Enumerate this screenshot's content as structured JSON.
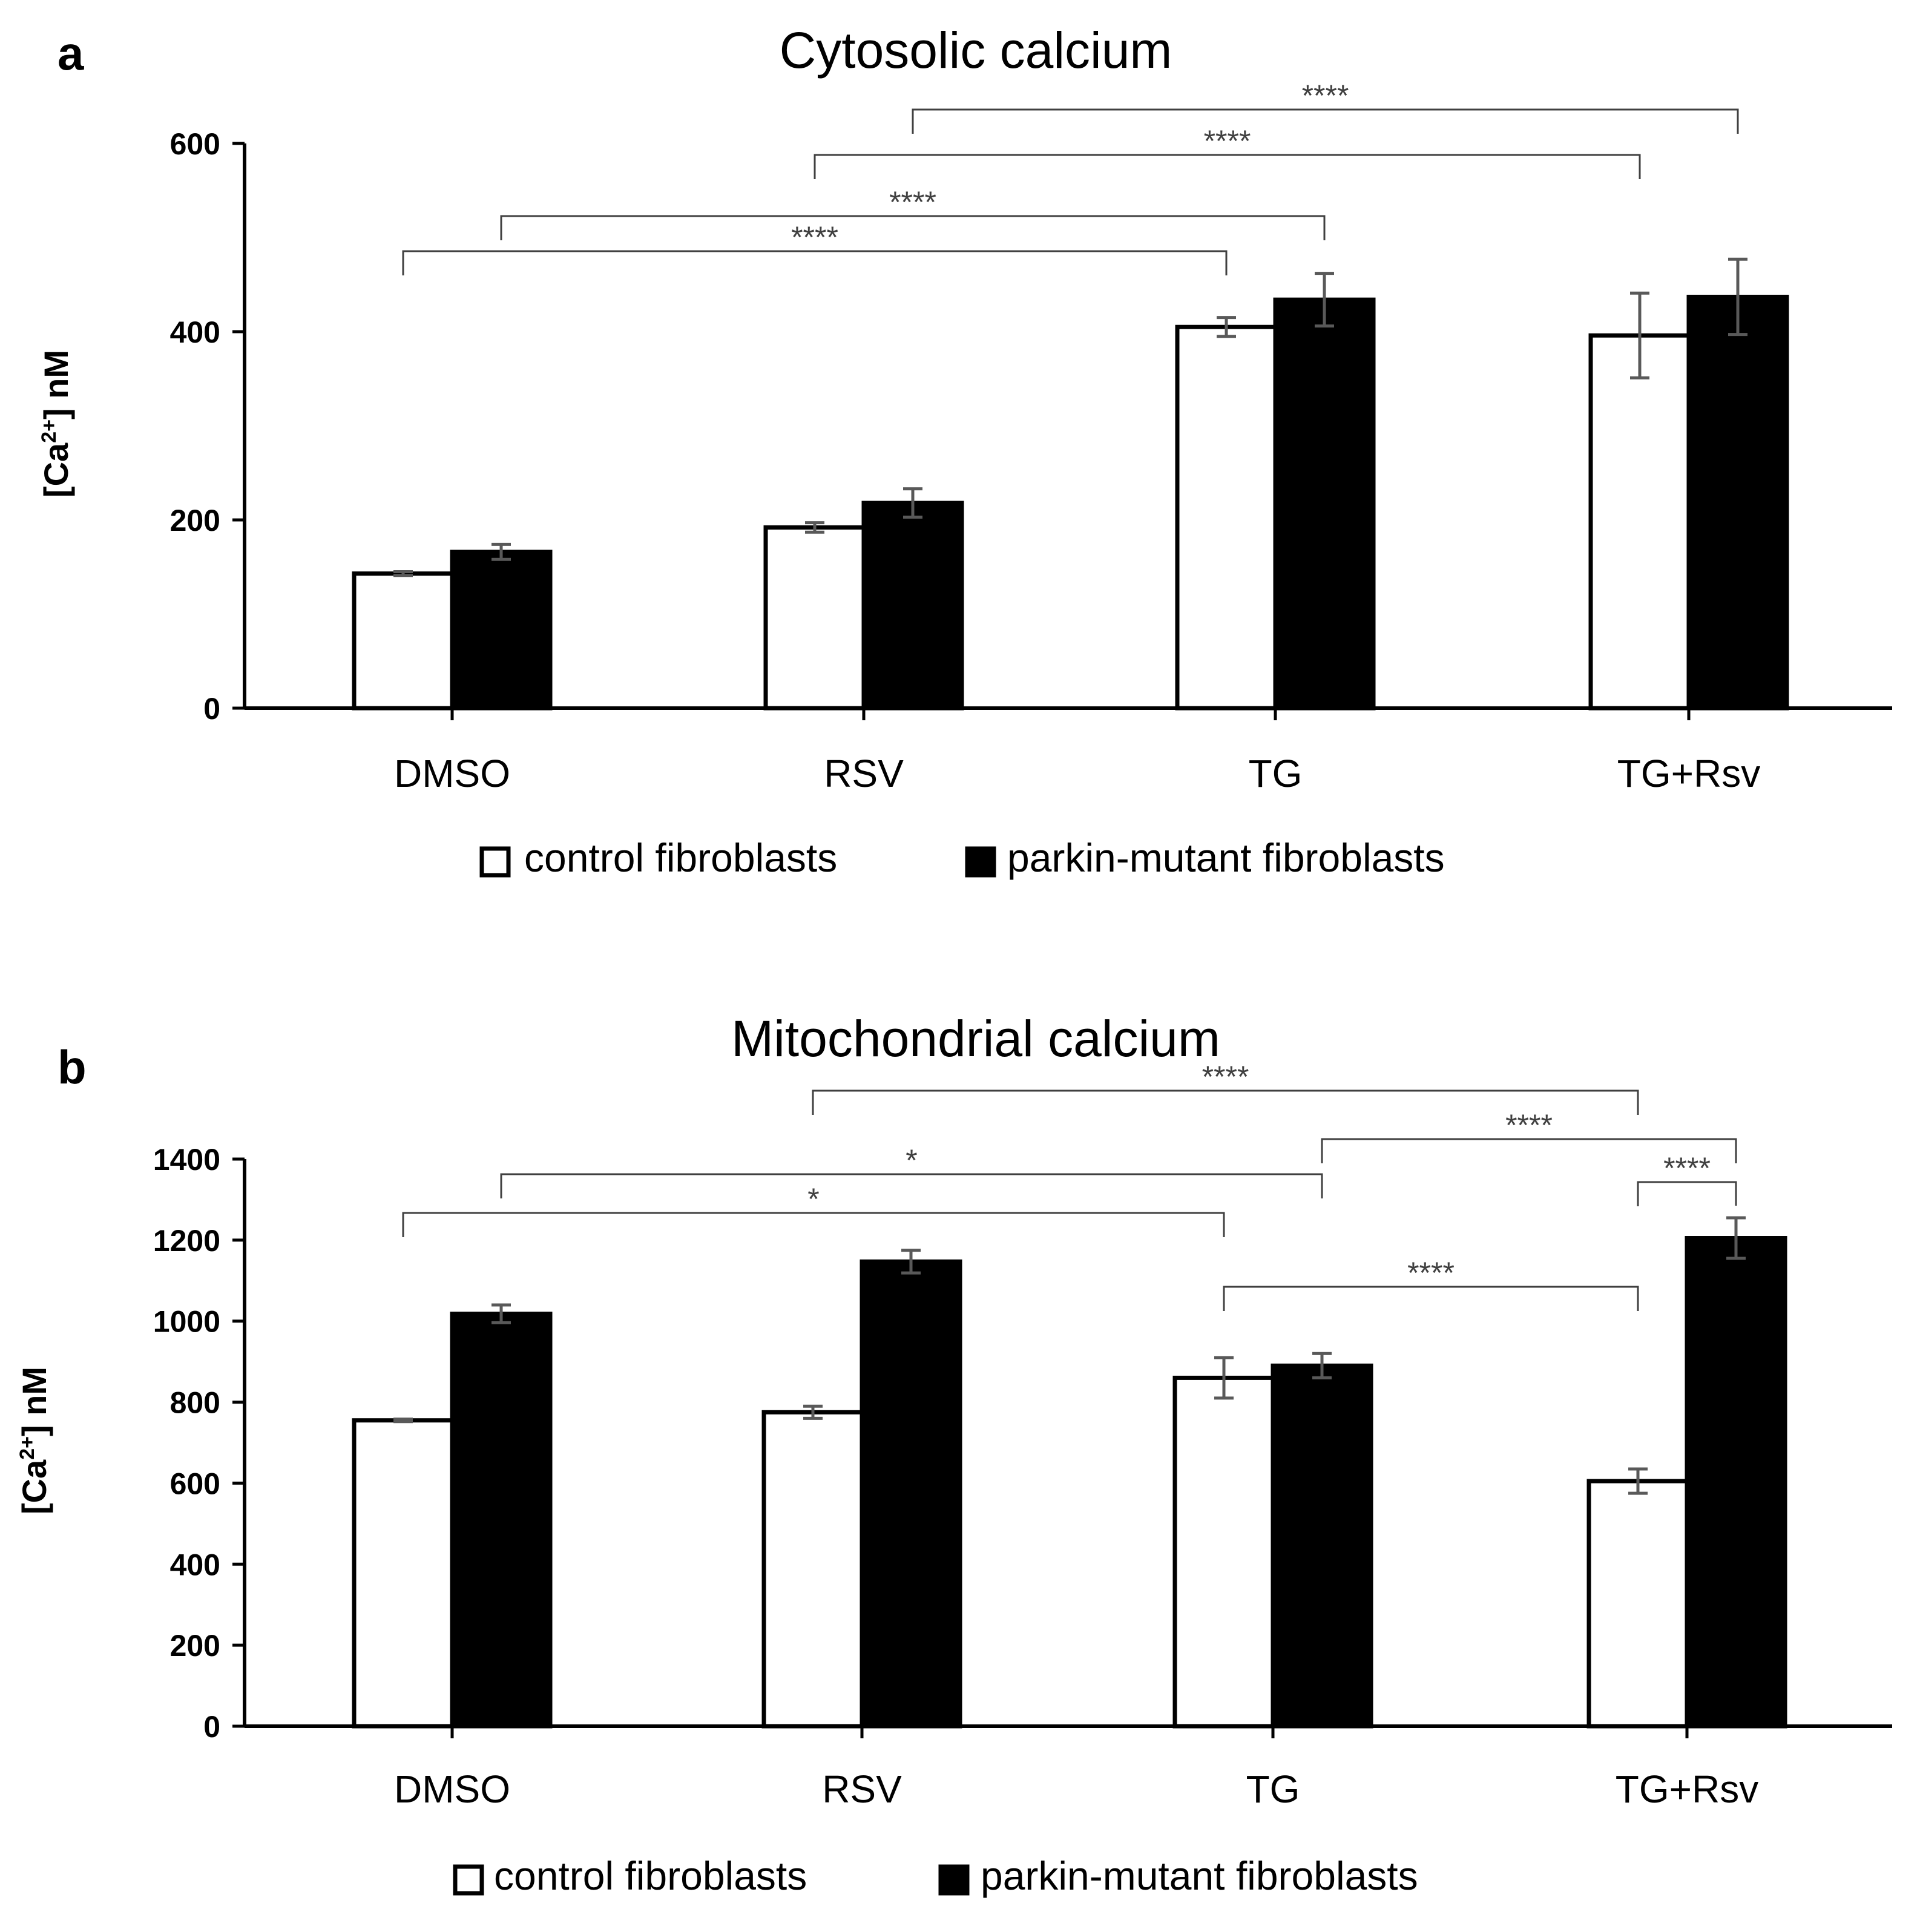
{
  "chart_data": [
    {
      "type": "bar",
      "panel": "a",
      "title": "Cytosolic calcium",
      "ylabel": {
        "prefix": "[Ca",
        "sup": "2+",
        "suffix": "] nM"
      },
      "ylim": [
        0,
        600
      ],
      "yticks": [
        0,
        200,
        400,
        600
      ],
      "categories": [
        "DMSO",
        "RSV",
        "TG",
        "TG+Rsv"
      ],
      "series": [
        {
          "name": "control fibroblasts",
          "color": "#ffffff",
          "values": [
            143,
            192,
            405,
            396
          ],
          "errors": [
            2,
            5,
            10,
            45
          ]
        },
        {
          "name": "parkin-mutant fibroblasts",
          "color": "#000000",
          "values": [
            166,
            218,
            434,
            437
          ],
          "errors": [
            8,
            15,
            28,
            40
          ]
        }
      ],
      "legend": [
        "control fibroblasts",
        "parkin-mutant fibroblasts"
      ],
      "significance": [
        {
          "from": [
            0,
            0
          ],
          "to": [
            2,
            0
          ],
          "label": "****"
        },
        {
          "from": [
            0,
            1
          ],
          "to": [
            2,
            1
          ],
          "label": "****"
        },
        {
          "from": [
            1,
            0
          ],
          "to": [
            3,
            0
          ],
          "label": "****"
        },
        {
          "from": [
            1,
            1
          ],
          "to": [
            3,
            1
          ],
          "label": "****"
        }
      ]
    },
    {
      "type": "bar",
      "panel": "b",
      "title": "Mitochondrial calcium",
      "ylabel": {
        "prefix": "[Ca",
        "sup": "2+",
        "suffix": "] nM"
      },
      "ylim": [
        0,
        1400
      ],
      "yticks": [
        0,
        200,
        400,
        600,
        800,
        1000,
        1200,
        1400
      ],
      "categories": [
        "DMSO",
        "RSV",
        "TG",
        "TG+Rsv"
      ],
      "series": [
        {
          "name": "control fibroblasts",
          "color": "#ffffff",
          "values": [
            755,
            775,
            860,
            605
          ],
          "errors": [
            3,
            15,
            50,
            30
          ]
        },
        {
          "name": "parkin-mutant fibroblasts",
          "color": "#000000",
          "values": [
            1018,
            1147,
            890,
            1205
          ],
          "errors": [
            22,
            28,
            30,
            50
          ]
        }
      ],
      "legend": [
        "control fibroblasts",
        "parkin-mutant fibroblasts"
      ],
      "significance": [
        {
          "from": [
            0,
            0
          ],
          "to": [
            2,
            0
          ],
          "label": "*"
        },
        {
          "from": [
            0,
            1
          ],
          "to": [
            2,
            1
          ],
          "label": "*"
        },
        {
          "from": [
            1,
            0
          ],
          "to": [
            3,
            0
          ],
          "label": "****"
        },
        {
          "from": [
            2,
            1
          ],
          "to": [
            3,
            1
          ],
          "label": "****"
        },
        {
          "from": [
            3,
            0
          ],
          "to": [
            3,
            1
          ],
          "label": "****"
        },
        {
          "from": [
            2,
            0
          ],
          "to": [
            3,
            0
          ],
          "label": "****"
        }
      ]
    }
  ]
}
